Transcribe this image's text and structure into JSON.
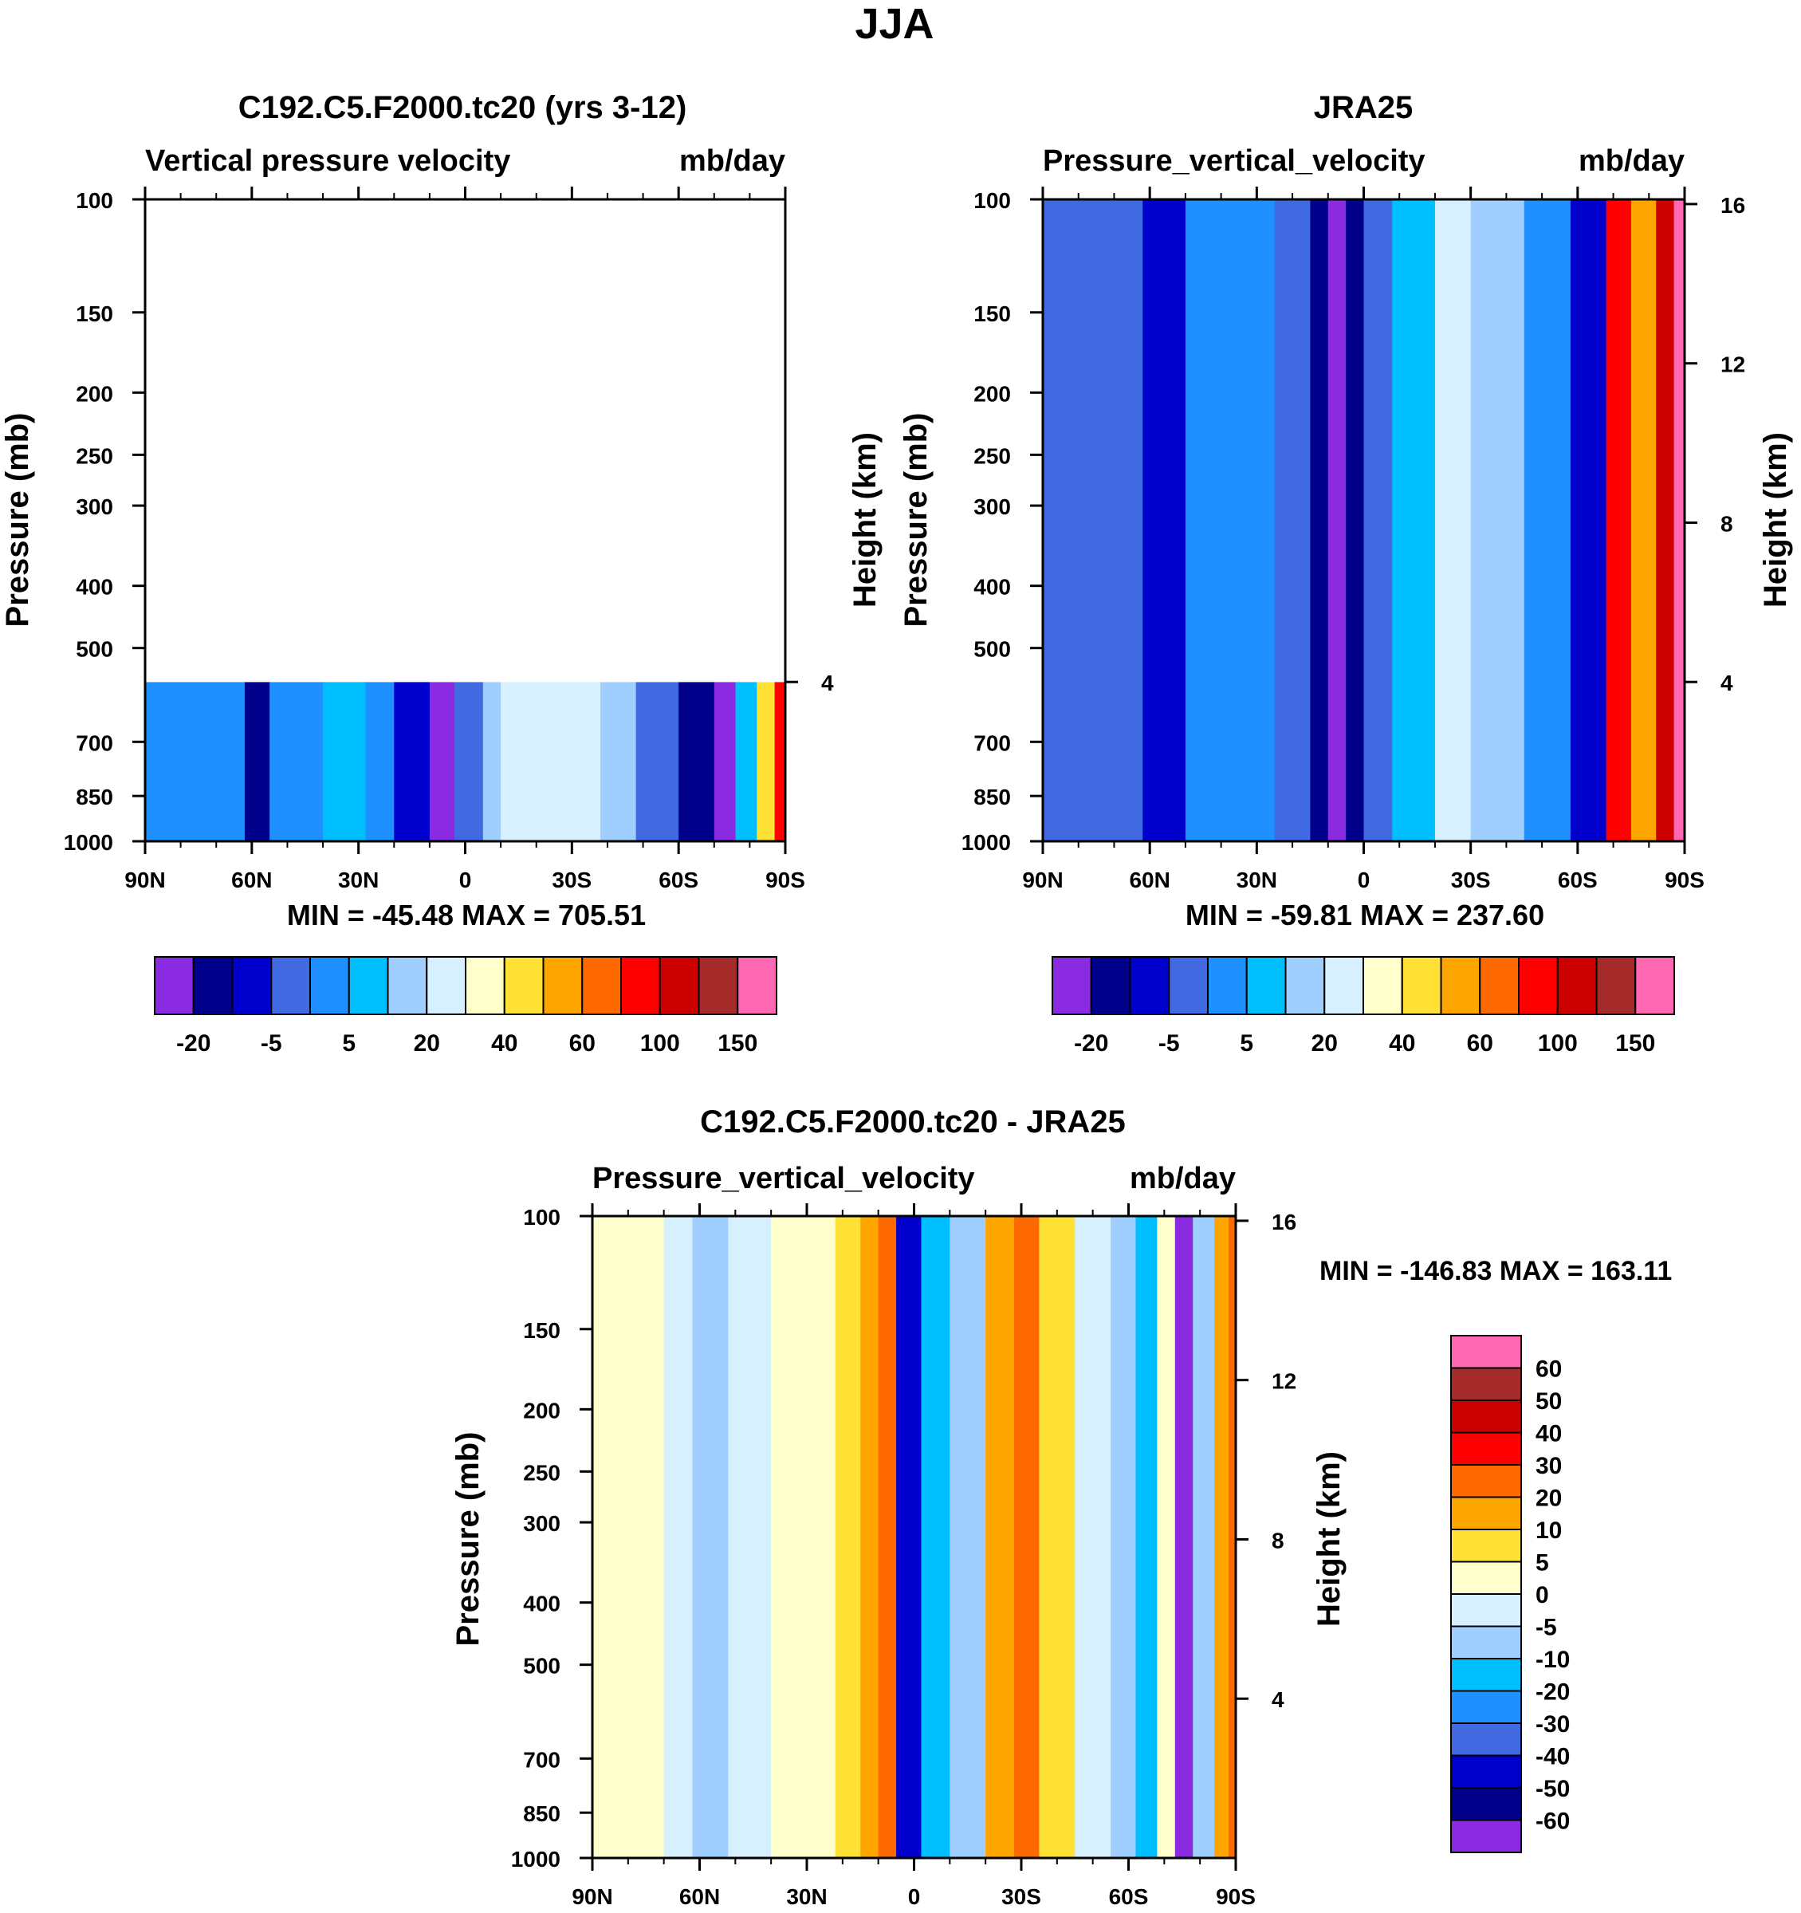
{
  "figure_title": "JJA",
  "panels": {
    "model": {
      "title": "C192.C5.F2000.tc20 (yrs 3-12)",
      "subtitle_left": "Vertical pressure velocity",
      "subtitle_right": "mb/day",
      "ylabel_left": "Pressure (mb)",
      "ylabel_right": "Height (km)",
      "minmax": "MIN = -45.48  MAX = 705.51"
    },
    "obs": {
      "title": "JRA25",
      "subtitle_left": "Pressure_vertical_velocity",
      "subtitle_right": "mb/day",
      "ylabel_left": "Pressure (mb)",
      "ylabel_right": "Height (km)",
      "minmax": "MIN = -59.81  MAX = 237.60"
    },
    "diff": {
      "title": "C192.C5.F2000.tc20 - JRA25",
      "subtitle_left": "Pressure_vertical_velocity",
      "subtitle_right": "mb/day",
      "ylabel_left": "Pressure (mb)",
      "ylabel_right": "Height (km)",
      "minmax": "MIN = -146.83  MAX = 163.11"
    }
  },
  "colors": {
    "abs_palette": [
      "#8a2be2",
      "#00008b",
      "#0000cd",
      "#4169e1",
      "#1e90ff",
      "#00bfff",
      "#a0cfff",
      "#d6f0ff",
      "#ffffcc",
      "#ffe135",
      "#ffa500",
      "#ff6a00",
      "#ff0000",
      "#cd0000",
      "#a52a2a",
      "#ff69b4"
    ],
    "diff_palette": [
      "#8a2be2",
      "#00008b",
      "#0000cd",
      "#4169e1",
      "#1e90ff",
      "#00bfff",
      "#a0cfff",
      "#d6f0ff",
      "#ffffcc",
      "#ffe135",
      "#ffa500",
      "#ff6a00",
      "#ff0000",
      "#cd0000",
      "#a52a2a",
      "#ff69b4"
    ]
  },
  "chart_data": [
    {
      "type": "heatmap",
      "name": "model",
      "title": "C192.C5.F2000.tc20 (yrs 3-12)",
      "xlabel": "",
      "ylabel": "Pressure (mb)",
      "x_ticks": [
        "90N",
        "60N",
        "30N",
        "0",
        "30S",
        "60S",
        "90S"
      ],
      "x_values": [
        90,
        60,
        30,
        0,
        -30,
        -60,
        -90
      ],
      "y_ticks": [
        100,
        150,
        200,
        250,
        300,
        400,
        500,
        700,
        850,
        1000
      ],
      "y_range": [
        100,
        1000
      ],
      "y_scale": "log",
      "height_ticks": [
        4
      ],
      "data_pressure_range": [
        565,
        1000
      ],
      "columns": [
        {
          "lat": 90,
          "level": 4
        },
        {
          "lat": 75,
          "level": 4
        },
        {
          "lat": 62,
          "level": 1
        },
        {
          "lat": 55,
          "level": 4
        },
        {
          "lat": 40,
          "level": 5
        },
        {
          "lat": 28,
          "level": 4
        },
        {
          "lat": 20,
          "level": 2
        },
        {
          "lat": 10,
          "level": 0
        },
        {
          "lat": 3,
          "level": 3
        },
        {
          "lat": -5,
          "level": 6
        },
        {
          "lat": -10,
          "level": 7
        },
        {
          "lat": -25,
          "level": 7
        },
        {
          "lat": -38,
          "level": 6
        },
        {
          "lat": -48,
          "level": 3
        },
        {
          "lat": -60,
          "level": 1
        },
        {
          "lat": -70,
          "level": 0
        },
        {
          "lat": -76,
          "level": 5
        },
        {
          "lat": -82,
          "level": 9
        },
        {
          "lat": -87,
          "level": 12
        }
      ],
      "colorbar_labels": [
        "-20",
        "-5",
        "5",
        "20",
        "40",
        "60",
        "100",
        "150"
      ],
      "minmax": "MIN = -45.48  MAX = 705.51"
    },
    {
      "type": "heatmap",
      "name": "obs",
      "title": "JRA25",
      "xlabel": "",
      "ylabel": "Pressure (mb)",
      "x_ticks": [
        "90N",
        "60N",
        "30N",
        "0",
        "30S",
        "60S",
        "90S"
      ],
      "x_values": [
        90,
        60,
        30,
        0,
        -30,
        -60,
        -90
      ],
      "y_ticks": [
        100,
        150,
        200,
        250,
        300,
        400,
        500,
        700,
        850,
        1000
      ],
      "y_range": [
        100,
        1000
      ],
      "y_scale": "log",
      "height_ticks": [
        4,
        8,
        12,
        16
      ],
      "data_pressure_range": [
        100,
        1000
      ],
      "columns": [
        {
          "lat": 90,
          "level": 3
        },
        {
          "lat": 75,
          "level": 3
        },
        {
          "lat": 62,
          "level": 2
        },
        {
          "lat": 50,
          "level": 4
        },
        {
          "lat": 35,
          "level": 4
        },
        {
          "lat": 25,
          "level": 3
        },
        {
          "lat": 15,
          "level": 1
        },
        {
          "lat": 10,
          "level": 0
        },
        {
          "lat": 5,
          "level": 1
        },
        {
          "lat": 0,
          "level": 3
        },
        {
          "lat": -8,
          "level": 5
        },
        {
          "lat": -20,
          "level": 7
        },
        {
          "lat": -30,
          "level": 6
        },
        {
          "lat": -45,
          "level": 4
        },
        {
          "lat": -58,
          "level": 2
        },
        {
          "lat": -68,
          "level": 12
        },
        {
          "lat": -75,
          "level": 10
        },
        {
          "lat": -82,
          "level": 13
        },
        {
          "lat": -87,
          "level": 15
        }
      ],
      "colorbar_labels": [
        "-20",
        "-5",
        "5",
        "20",
        "40",
        "60",
        "100",
        "150"
      ],
      "minmax": "MIN = -59.81  MAX = 237.60"
    },
    {
      "type": "heatmap",
      "name": "diff",
      "title": "C192.C5.F2000.tc20 - JRA25",
      "xlabel": "",
      "ylabel": "Pressure (mb)",
      "x_ticks": [
        "90N",
        "60N",
        "30N",
        "0",
        "30S",
        "60S",
        "90S"
      ],
      "x_values": [
        90,
        60,
        30,
        0,
        -30,
        -60,
        -90
      ],
      "y_ticks": [
        100,
        150,
        200,
        250,
        300,
        400,
        500,
        700,
        850,
        1000
      ],
      "y_range": [
        100,
        1000
      ],
      "y_scale": "log",
      "height_ticks": [
        4,
        8,
        12,
        16
      ],
      "data_pressure_range": [
        100,
        1000
      ],
      "columns": [
        {
          "lat": 90,
          "level": 8
        },
        {
          "lat": 80,
          "level": 8
        },
        {
          "lat": 70,
          "level": 7
        },
        {
          "lat": 62,
          "level": 6
        },
        {
          "lat": 52,
          "level": 7
        },
        {
          "lat": 40,
          "level": 8
        },
        {
          "lat": 32,
          "level": 8
        },
        {
          "lat": 22,
          "level": 9
        },
        {
          "lat": 15,
          "level": 10
        },
        {
          "lat": 10,
          "level": 11
        },
        {
          "lat": 5,
          "level": 2
        },
        {
          "lat": -2,
          "level": 5
        },
        {
          "lat": -10,
          "level": 6
        },
        {
          "lat": -20,
          "level": 10
        },
        {
          "lat": -28,
          "level": 11
        },
        {
          "lat": -35,
          "level": 9
        },
        {
          "lat": -45,
          "level": 7
        },
        {
          "lat": -55,
          "level": 6
        },
        {
          "lat": -62,
          "level": 5
        },
        {
          "lat": -68,
          "level": 8
        },
        {
          "lat": -73,
          "level": 0
        },
        {
          "lat": -78,
          "level": 6
        },
        {
          "lat": -84,
          "level": 10
        },
        {
          "lat": -88,
          "level": 11
        }
      ],
      "colorbar_labels": [
        "60",
        "50",
        "40",
        "30",
        "20",
        "10",
        "5",
        "0",
        "-5",
        "-10",
        "-20",
        "-30",
        "-40",
        "-50",
        "-60"
      ],
      "minmax": "MIN = -146.83  MAX = 163.11"
    }
  ]
}
